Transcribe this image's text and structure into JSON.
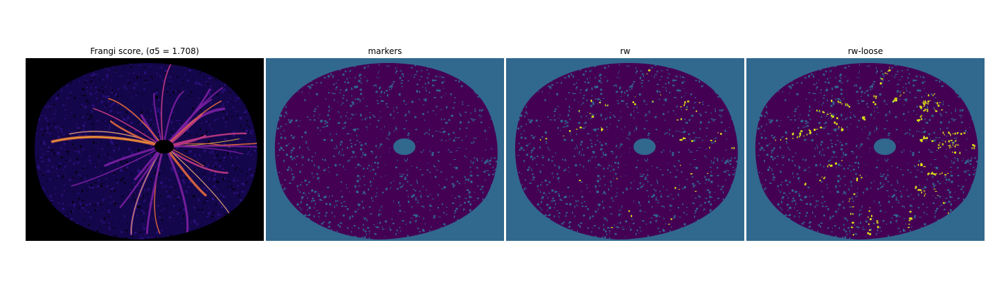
{
  "panels": [
    {
      "title": "Frangi score, (σ5 = 1.708)",
      "colormap": "plasma",
      "background": "#000000"
    },
    {
      "title": "markers",
      "colormap": "viridis",
      "background": "#31688e"
    },
    {
      "title": "rw",
      "colormap": "viridis",
      "background": "#31688e"
    },
    {
      "title": "rw-loose",
      "colormap": "viridis",
      "background": "#31688e"
    }
  ],
  "colors": {
    "tissue_dark": "#440154",
    "tissue_navy": "#14064a",
    "vessel_purple": "#7a1fa2",
    "vessel_magenta": "#c03a83",
    "vessel_yellow": "#f0f921",
    "label_teal": "#31688e",
    "label_yellow": "#d8e219"
  }
}
